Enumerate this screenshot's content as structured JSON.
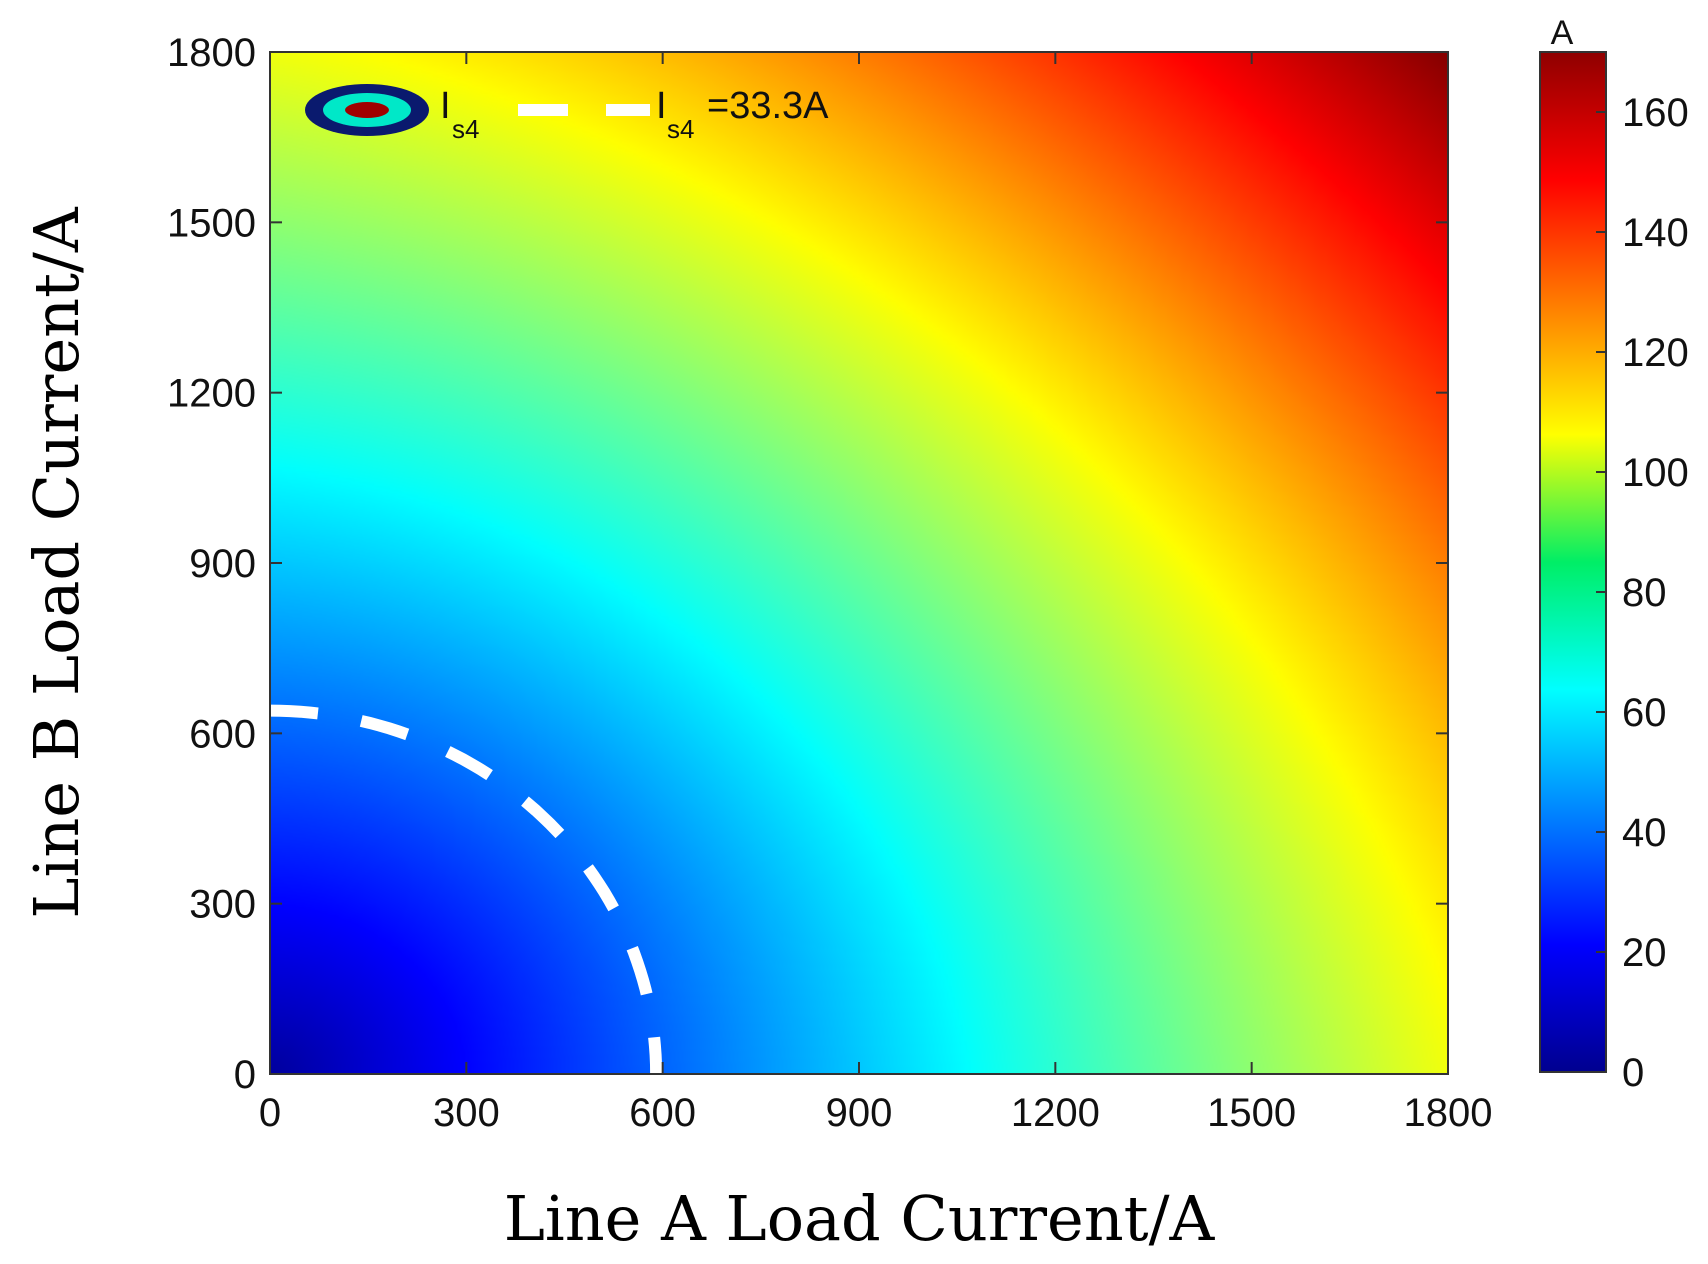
{
  "chart_data": {
    "type": "heatmap",
    "title": "",
    "xlabel": "Line A Load Current/A",
    "ylabel": "Line B Load Current/A",
    "xlim": [
      0,
      1800
    ],
    "ylim": [
      0,
      1800
    ],
    "x_ticks": [
      "0",
      "300",
      "600",
      "900",
      "1200",
      "1500",
      "1800"
    ],
    "y_ticks": [
      "0",
      "300",
      "600",
      "900",
      "1200",
      "1500",
      "1800"
    ],
    "colorbar": {
      "unit": "A",
      "range": [
        0,
        170
      ],
      "ticks": [
        "0",
        "20",
        "40",
        "60",
        "80",
        "100",
        "120",
        "140",
        "160"
      ],
      "colormap": "jet"
    },
    "field": {
      "description_values": "sheath current magnitude rising from ~0 A at (0,0) to ~170 A at (1800,1800)",
      "corner_values": {
        "x0_y0": 5,
        "x1800_y0": 95,
        "x0_y1800": 95,
        "x1800_y1800": 170
      }
    },
    "contour": {
      "value_label": "=33.3A",
      "level": 33.3,
      "x_intercept": 590,
      "y_intercept": 640,
      "style": "dashed",
      "color": "#ffffff"
    },
    "legend": {
      "placement": "top-left",
      "entries": [
        {
          "main": "I",
          "sub": "s4",
          "suffix": ""
        },
        {
          "main": "I",
          "sub": "s4",
          "suffix": "=33.3A"
        }
      ]
    }
  }
}
